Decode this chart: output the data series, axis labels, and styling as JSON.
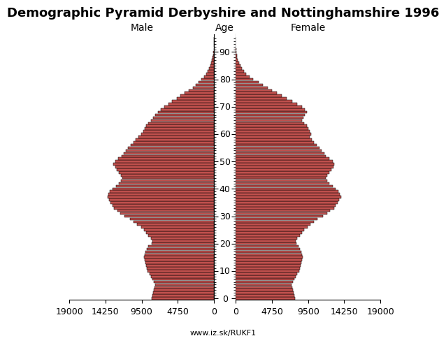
{
  "title": "Demographic Pyramid Derbyshire and Nottinghamshire 1996",
  "age_label": "Age",
  "male_label": "Male",
  "female_label": "Female",
  "footer": "www.iz.sk/RUKF1",
  "xlim": 19000,
  "bar_color": "#c0504d",
  "bar_edge_color": "#000000",
  "ages": [
    0,
    1,
    2,
    3,
    4,
    5,
    6,
    7,
    8,
    9,
    10,
    11,
    12,
    13,
    14,
    15,
    16,
    17,
    18,
    19,
    20,
    21,
    22,
    23,
    24,
    25,
    26,
    27,
    28,
    29,
    30,
    31,
    32,
    33,
    34,
    35,
    36,
    37,
    38,
    39,
    40,
    41,
    42,
    43,
    44,
    45,
    46,
    47,
    48,
    49,
    50,
    51,
    52,
    53,
    54,
    55,
    56,
    57,
    58,
    59,
    60,
    61,
    62,
    63,
    64,
    65,
    66,
    67,
    68,
    69,
    70,
    71,
    72,
    73,
    74,
    75,
    76,
    77,
    78,
    79,
    80,
    81,
    82,
    83,
    84,
    85,
    86,
    87,
    88,
    89,
    90,
    91,
    92,
    93,
    94,
    95
  ],
  "male": [
    8200,
    8100,
    8000,
    7900,
    7800,
    7700,
    7900,
    8100,
    8300,
    8500,
    8700,
    8800,
    8900,
    9000,
    9100,
    9200,
    9100,
    9000,
    8800,
    8600,
    8200,
    8100,
    8300,
    8600,
    8900,
    9200,
    9600,
    10100,
    10600,
    11000,
    11800,
    12300,
    12700,
    13100,
    13300,
    13600,
    13800,
    14000,
    13900,
    13700,
    13300,
    12900,
    12500,
    12200,
    12000,
    12200,
    12500,
    12800,
    13000,
    13200,
    13000,
    12600,
    12100,
    11900,
    11600,
    11300,
    10900,
    10600,
    10300,
    9900,
    9600,
    9300,
    9100,
    8900,
    8600,
    8300,
    8000,
    7700,
    7400,
    7000,
    6500,
    6000,
    5500,
    4900,
    4400,
    3900,
    3300,
    2800,
    2400,
    2000,
    1700,
    1300,
    1050,
    840,
    660,
    510,
    380,
    275,
    190,
    125,
    78,
    46,
    28,
    16,
    8,
    4
  ],
  "female": [
    7800,
    7700,
    7600,
    7500,
    7400,
    7300,
    7500,
    7700,
    7900,
    8100,
    8300,
    8400,
    8500,
    8600,
    8700,
    8800,
    8700,
    8600,
    8400,
    8200,
    8000,
    7900,
    8100,
    8400,
    8700,
    9000,
    9400,
    9800,
    10300,
    10700,
    11500,
    12000,
    12400,
    12900,
    13100,
    13400,
    13600,
    13800,
    13700,
    13500,
    13100,
    12700,
    12300,
    12000,
    11800,
    12000,
    12300,
    12600,
    12800,
    12900,
    12700,
    12300,
    11800,
    11600,
    11300,
    11000,
    10600,
    10300,
    10000,
    9700,
    9900,
    9700,
    9500,
    9300,
    9000,
    8700,
    8900,
    9100,
    9300,
    9100,
    8700,
    8100,
    7400,
    6700,
    6000,
    5400,
    4800,
    4200,
    3600,
    3000,
    2300,
    1800,
    1400,
    1050,
    790,
    580,
    420,
    290,
    200,
    125,
    73,
    42,
    26,
    14,
    7,
    3
  ],
  "age_ticks": [
    0,
    10,
    20,
    30,
    40,
    50,
    60,
    70,
    80,
    90
  ],
  "title_fontsize": 13,
  "label_fontsize": 10,
  "tick_fontsize": 9,
  "footer_fontsize": 8
}
